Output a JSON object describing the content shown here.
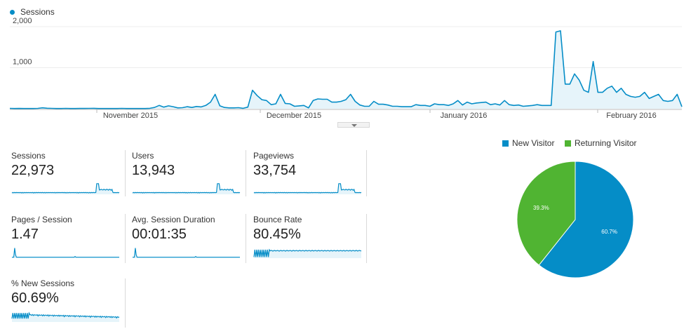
{
  "main_chart": {
    "legend_label": "Sessions",
    "series_color": "#058dc7",
    "fill_color": "#e6f4fa",
    "y_ticks": [
      "2,000",
      "1,000"
    ],
    "x_ticks": [
      "November 2015",
      "December 2015",
      "January 2016",
      "February 2016"
    ]
  },
  "metrics": [
    {
      "label": "Sessions",
      "value": "22,973"
    },
    {
      "label": "Users",
      "value": "13,943"
    },
    {
      "label": "Pageviews",
      "value": "33,754"
    },
    {
      "label": "Pages / Session",
      "value": "1.47"
    },
    {
      "label": "Avg. Session Duration",
      "value": "00:01:35"
    },
    {
      "label": "Bounce Rate",
      "value": "80.45%"
    },
    {
      "label": "% New Sessions",
      "value": "60.69%"
    }
  ],
  "pie": {
    "legend": [
      {
        "label": "New Visitor",
        "color": "#058dc7"
      },
      {
        "label": "Returning Visitor",
        "color": "#50b432"
      }
    ],
    "labels": [
      "60.7%",
      "39.3%"
    ]
  },
  "chart_data": [
    {
      "type": "area",
      "series": [
        {
          "name": "Sessions",
          "values": [
            8,
            5,
            6,
            5,
            5,
            5,
            8,
            22,
            12,
            8,
            5,
            5,
            8,
            5,
            5,
            6,
            6,
            8,
            10,
            5,
            5,
            5,
            5,
            5,
            8,
            5,
            5,
            5,
            5,
            5,
            10,
            30,
            80,
            40,
            70,
            50,
            20,
            25,
            50,
            30,
            55,
            45,
            80,
            160,
            350,
            70,
            30,
            20,
            20,
            25,
            10,
            40,
            450,
            320,
            220,
            200,
            100,
            120,
            350,
            130,
            120,
            60,
            70,
            80,
            20,
            200,
            240,
            230,
            230,
            160,
            160,
            180,
            220,
            350,
            180,
            90,
            60,
            60,
            180,
            110,
            110,
            90,
            60,
            60,
            50,
            50,
            50,
            100,
            80,
            80,
            60,
            120,
            100,
            100,
            80,
            120,
            200,
            90,
            160,
            120,
            140,
            150,
            160,
            100,
            120,
            90,
            200,
            100,
            80,
            90,
            60,
            70,
            80,
            100,
            80,
            80,
            80,
            1870,
            1900,
            600,
            600,
            850,
            700,
            450,
            400,
            1150,
            400,
            400,
            500,
            550,
            400,
            500,
            350,
            300,
            280,
            300,
            400,
            250,
            300,
            350,
            200,
            180,
            200,
            350,
            50
          ]
        }
      ],
      "y_ticks": [
        1000,
        2000
      ],
      "ylim": [
        0,
        2200
      ],
      "x_ticks": [
        "November 2015",
        "December 2015",
        "January 2016",
        "February 2016"
      ]
    },
    {
      "type": "pie",
      "categories": [
        "New Visitor",
        "Returning Visitor"
      ],
      "values": [
        60.7,
        39.3
      ],
      "labels": [
        "60.7%",
        "39.3%"
      ]
    }
  ]
}
